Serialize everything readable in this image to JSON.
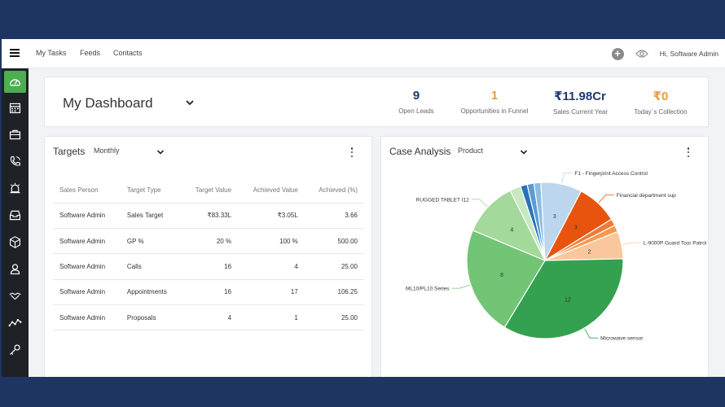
{
  "topbar": {
    "nav": [
      "My Tasks",
      "Feeds",
      "Contacts"
    ],
    "greeting": "Hi, Software Admin"
  },
  "sidebar": {
    "items": [
      "dashboard-icon",
      "calendar-icon",
      "briefcase-icon",
      "phone-icon",
      "alarm-icon",
      "inbox-icon",
      "package-icon",
      "user-icon",
      "handshake-icon",
      "trend-icon",
      "key-icon"
    ],
    "active_color": "#4caf50"
  },
  "dashboard": {
    "title": "My Dashboard",
    "stats": [
      {
        "value": "9",
        "label": "Open Leads",
        "color": "#1e3a6e"
      },
      {
        "value": "1",
        "label": "Opportunities in Funnel",
        "color": "#f2993a"
      },
      {
        "value": "₹11.98Cr",
        "label": "Sales Current Year",
        "color": "#1e3a6e"
      },
      {
        "value": "₹0",
        "label": "Today`s Collection",
        "color": "#f2993a"
      }
    ]
  },
  "targets": {
    "title": "Targets",
    "filter": "Monthly",
    "columns": [
      "Sales Person",
      "Target Type",
      "Target Value",
      "Achieved Value",
      "Achieved (%)"
    ],
    "rows": [
      [
        "Software Admin",
        "Sales Target",
        "₹83.33L",
        "₹3.05L",
        "3.66"
      ],
      [
        "Software Admin",
        "GP %",
        "20 %",
        "100 %",
        "500.00"
      ],
      [
        "Software Admin",
        "Calls",
        "16",
        "4",
        "25.00"
      ],
      [
        "Software Admin",
        "Appointments",
        "16",
        "17",
        "106.25"
      ],
      [
        "Software Admin",
        "Proposals",
        "4",
        "1",
        "25.00"
      ]
    ]
  },
  "case_analysis": {
    "title": "Case Analysis",
    "filter": "Product",
    "chart_data": {
      "type": "pie",
      "slices": [
        {
          "label": "",
          "value": 0.5,
          "color": "#2b73b8"
        },
        {
          "label": "",
          "value": 0.5,
          "color": "#5a9bd0"
        },
        {
          "label": "",
          "value": 0.5,
          "color": "#8bbde3"
        },
        {
          "label": "F1 - Fingerprint Access Control",
          "value": 3,
          "color": "#bcd6ee",
          "display": "3"
        },
        {
          "label": "Financial department sup",
          "value": 3,
          "color": "#e8540e",
          "display": "3"
        },
        {
          "label": "",
          "value": 0.5,
          "color": "#f07a38"
        },
        {
          "label": "",
          "value": 0.5,
          "color": "#f5984f"
        },
        {
          "label": "L-9000P Guard Tour Patrol",
          "value": 2,
          "color": "#f9c79b",
          "display": "2"
        },
        {
          "label": "Microwave sensor",
          "value": 12,
          "color": "#33a150",
          "display": "12"
        },
        {
          "label": "ML10/PL10 Series",
          "value": 8,
          "color": "#72c575",
          "display": "8"
        },
        {
          "label": "RUGGED TABLET I12",
          "value": 4,
          "color": "#a3d99a",
          "display": "4"
        },
        {
          "label": "",
          "value": 0.8,
          "color": "#c7e9c0"
        }
      ]
    }
  }
}
